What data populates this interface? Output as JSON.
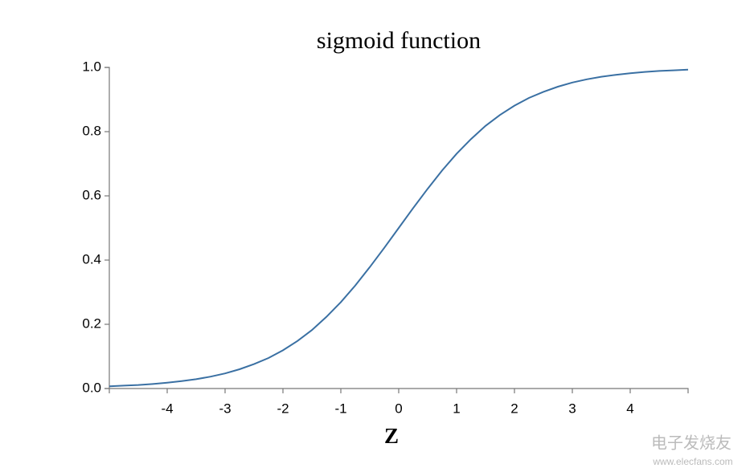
{
  "chart_data": {
    "type": "line",
    "title": "sigmoid function",
    "x_label": "Z",
    "x": [
      -5,
      -4.75,
      -4.5,
      -4.25,
      -4,
      -3.75,
      -3.5,
      -3.25,
      -3,
      -2.75,
      -2.5,
      -2.25,
      -2,
      -1.75,
      -1.5,
      -1.25,
      -1,
      -0.75,
      -0.5,
      -0.25,
      0,
      0.25,
      0.5,
      0.75,
      1,
      1.25,
      1.5,
      1.75,
      2,
      2.25,
      2.5,
      2.75,
      3,
      3.25,
      3.5,
      3.75,
      4,
      4.25,
      4.5,
      4.75,
      5
    ],
    "values": [
      0.007,
      0.009,
      0.011,
      0.014,
      0.018,
      0.023,
      0.029,
      0.037,
      0.047,
      0.06,
      0.076,
      0.095,
      0.119,
      0.148,
      0.182,
      0.223,
      0.269,
      0.321,
      0.378,
      0.438,
      0.5,
      0.562,
      0.622,
      0.679,
      0.731,
      0.777,
      0.818,
      0.852,
      0.881,
      0.905,
      0.924,
      0.94,
      0.953,
      0.963,
      0.971,
      0.977,
      0.982,
      0.986,
      0.989,
      0.991,
      0.993
    ],
    "color": "#3a70a3",
    "xlim": [
      -5,
      5
    ],
    "xticks": [
      -4,
      -3,
      -2,
      -1,
      0,
      1,
      2,
      3,
      4
    ],
    "ylim": [
      0,
      1
    ],
    "yticks": [
      {
        "value": 0,
        "label": "0.0"
      },
      0.2,
      0.4,
      0.6,
      0.8,
      {
        "value": 1,
        "label": "1.0"
      }
    ],
    "grid": false
  },
  "watermark": {
    "brand": "电子发烧友",
    "url": "www.elecfans.com"
  }
}
